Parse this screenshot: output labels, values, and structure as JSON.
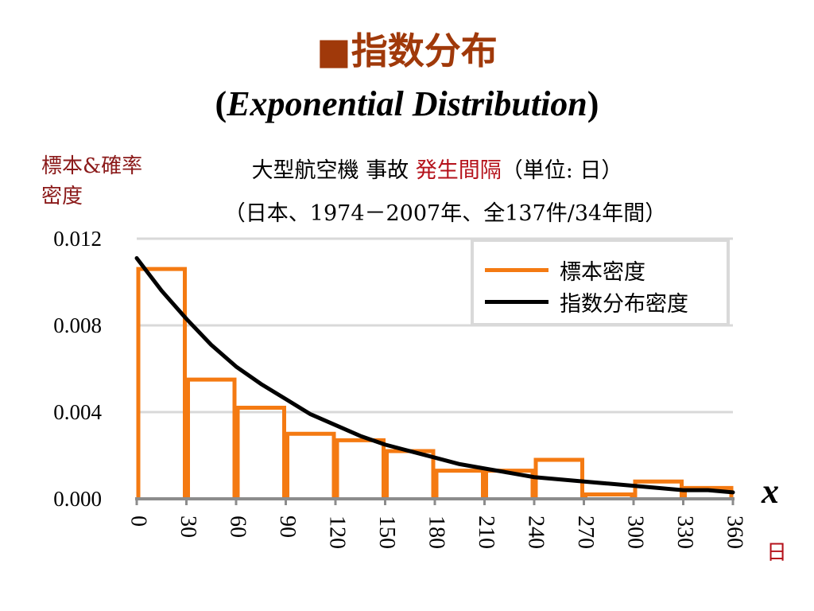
{
  "title": {
    "square": "■",
    "jp": "指数分布",
    "en_open": "(",
    "en_text": "Exponential Distribution",
    "en_close": ")"
  },
  "ylabel_line1": "標本&確率",
  "ylabel_line2": "密度",
  "subtitle": {
    "prefix": "大型航空機 事故 ",
    "highlight": "発生間隔",
    "suffix": "（単位: 日）",
    "line2": "（日本、1974－2007年、全137件/34年間）"
  },
  "xvar": "x",
  "xunit": "日",
  "legend": [
    {
      "label": "標本密度",
      "color": "#f47a12"
    },
    {
      "label": "指数分布密度",
      "color": "#000000"
    }
  ],
  "chart_data": {
    "type": "bar",
    "x_ticks": [
      "0",
      "30",
      "60",
      "90",
      "120",
      "150",
      "180",
      "210",
      "240",
      "270",
      "300",
      "330",
      "360"
    ],
    "y_ticks": [
      "0.000",
      "0.004",
      "0.008",
      "0.012"
    ],
    "xlim": [
      0,
      360
    ],
    "ylim": [
      0,
      0.012
    ],
    "grid": true,
    "legend_position": "top-right",
    "series": [
      {
        "name": "標本密度",
        "kind": "histogram",
        "color": "#f47a12",
        "bin_edges": [
          0,
          30,
          60,
          90,
          120,
          150,
          180,
          210,
          240,
          270,
          300,
          330,
          360
        ],
        "values": [
          0.0106,
          0.0055,
          0.0042,
          0.003,
          0.0027,
          0.0022,
          0.0013,
          0.0013,
          0.0018,
          0.0002,
          0.0008,
          0.0005
        ]
      },
      {
        "name": "指数分布密度",
        "kind": "curve",
        "color": "#000000",
        "x": [
          0,
          15,
          30,
          45,
          60,
          75,
          90,
          105,
          120,
          135,
          150,
          165,
          180,
          195,
          210,
          225,
          240,
          255,
          270,
          285,
          300,
          315,
          330,
          345,
          360
        ],
        "values": [
          0.0111,
          0.0096,
          0.0083,
          0.0071,
          0.0061,
          0.0053,
          0.0046,
          0.0039,
          0.0034,
          0.0029,
          0.0025,
          0.0022,
          0.0019,
          0.0016,
          0.0014,
          0.0012,
          0.001,
          0.0009,
          0.0008,
          0.0007,
          0.0006,
          0.0005,
          0.0004,
          0.0004,
          0.0003
        ]
      }
    ]
  }
}
